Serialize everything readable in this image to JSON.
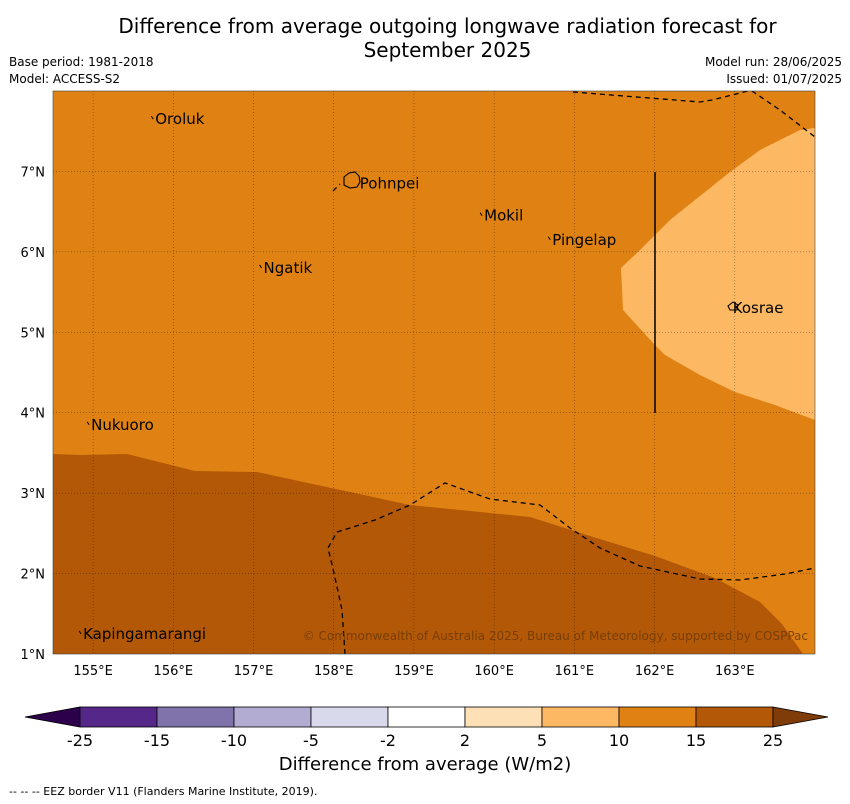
{
  "title": "Difference from average outgoing longwave radiation forecast for September 2025",
  "title_line1": "Difference from average outgoing longwave radiation forecast for",
  "title_line2": "September 2025",
  "base_period": "Base period: 1981-2018",
  "model": "Model: ACCESS-S2",
  "model_run": "Model run: 28/06/2025",
  "issued": "Issued: 01/07/2025",
  "copyright": "© Commonwealth of Australia 2025, Bureau of Meteorology, supported by COSPPac",
  "footer": "--  --  -- EEZ border V11 (Flanders Marine Institute, 2019).",
  "map": {
    "lon_range": [
      154.5,
      164.0
    ],
    "lat_range": [
      1.0,
      8.0
    ],
    "lon_ticks": [
      "155°E",
      "156°E",
      "157°E",
      "158°E",
      "159°E",
      "160°E",
      "161°E",
      "162°E",
      "163°E"
    ],
    "lat_ticks": [
      "1°N",
      "2°N",
      "3°N",
      "4°N",
      "5°N",
      "6°N",
      "7°N"
    ],
    "grid": true,
    "colors": {
      "level_10_15": "#e08213",
      "level_15_25": "#b35806",
      "level_5_10": "#fdb863"
    },
    "places": [
      {
        "name": "Oroluk",
        "lon": 155.75,
        "lat": 7.65
      },
      {
        "name": "Pohnpei",
        "lon": 158.3,
        "lat": 6.85
      },
      {
        "name": "Mokil",
        "lon": 159.85,
        "lat": 6.45
      },
      {
        "name": "Pingelap",
        "lon": 160.7,
        "lat": 6.15
      },
      {
        "name": "Ngatik",
        "lon": 157.1,
        "lat": 5.8
      },
      {
        "name": "Kosrae",
        "lon": 162.95,
        "lat": 5.3
      },
      {
        "name": "Nukuoro",
        "lon": 154.95,
        "lat": 3.85
      },
      {
        "name": "Kapingamarangi",
        "lon": 154.85,
        "lat": 1.25
      }
    ]
  },
  "colorbar": {
    "title": "Difference from average (W/m2)",
    "tick_labels": [
      "-25",
      "-15",
      "-10",
      "-5",
      "-2",
      "2",
      "5",
      "10",
      "15",
      "25"
    ],
    "colors": [
      "#2d004b",
      "#542788",
      "#8073ac",
      "#b2abd2",
      "#d8daeb",
      "#ffffff",
      "#fee0b6",
      "#fdb863",
      "#e08213",
      "#b35806",
      "#7f3b08"
    ]
  }
}
